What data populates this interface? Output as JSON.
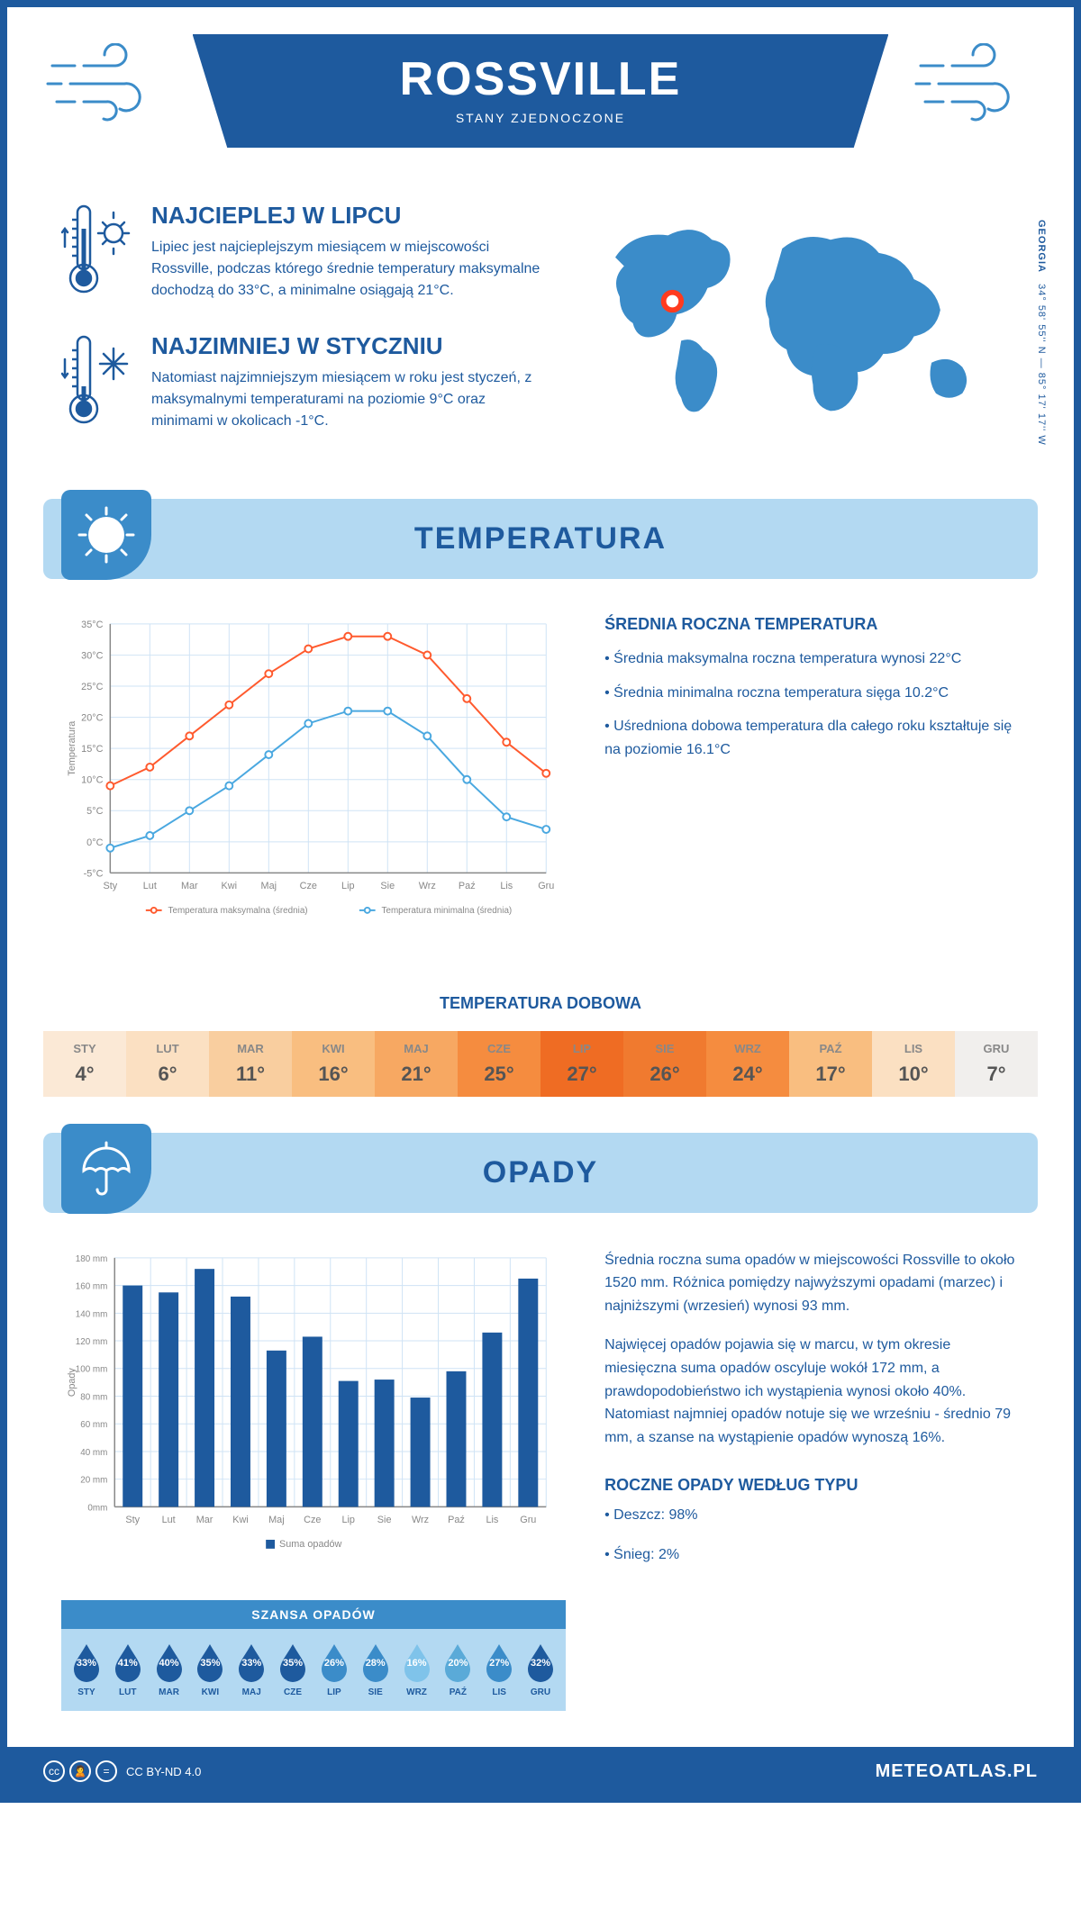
{
  "header": {
    "title": "ROSSVILLE",
    "subtitle": "STANY ZJEDNOCZONE"
  },
  "coords": {
    "text": "34° 58' 55'' N — 85° 17' 17'' W",
    "state": "GEORGIA"
  },
  "facts": {
    "hot": {
      "title": "NAJCIEPLEJ W LIPCU",
      "text": "Lipiec jest najcieplejszym miesiącem w miejscowości Rossville, podczas którego średnie temperatury maksymalne dochodzą do 33°C, a minimalne osiągają 21°C."
    },
    "cold": {
      "title": "NAJZIMNIEJ W STYCZNIU",
      "text": "Natomiast najzimniejszym miesiącem w roku jest styczeń, z maksymalnymi temperaturami na poziomie 9°C oraz minimami w okolicach -1°C."
    }
  },
  "sections": {
    "temp": "TEMPERATURA",
    "precip": "OPADY"
  },
  "months": [
    "Sty",
    "Lut",
    "Mar",
    "Kwi",
    "Maj",
    "Cze",
    "Lip",
    "Sie",
    "Wrz",
    "Paź",
    "Lis",
    "Gru"
  ],
  "months_upper": [
    "STY",
    "LUT",
    "MAR",
    "KWI",
    "MAJ",
    "CZE",
    "LIP",
    "SIE",
    "WRZ",
    "PAŹ",
    "LIS",
    "GRU"
  ],
  "temp_chart": {
    "type": "line",
    "ylabel": "Temperatura",
    "ylim": [
      -5,
      35
    ],
    "ytick_step": 5,
    "ytick_labels": [
      "-5°C",
      "0°C",
      "5°C",
      "10°C",
      "15°C",
      "20°C",
      "25°C",
      "30°C",
      "35°C"
    ],
    "series": {
      "max": {
        "label": "Temperatura maksymalna (średnia)",
        "color": "#ff5a2e",
        "values": [
          9,
          12,
          17,
          22,
          27,
          31,
          33,
          33,
          30,
          23,
          16,
          11
        ]
      },
      "min": {
        "label": "Temperatura minimalna (średnia)",
        "color": "#4aa8e0",
        "values": [
          -1,
          1,
          5,
          9,
          14,
          19,
          21,
          21,
          17,
          10,
          4,
          2
        ]
      }
    },
    "grid_color": "#cfe3f5",
    "background": "#ffffff",
    "line_width": 2,
    "marker": "circle",
    "marker_size": 4
  },
  "temp_side": {
    "title": "ŚREDNIA ROCZNA TEMPERATURA",
    "p1": "• Średnia maksymalna roczna temperatura wynosi 22°C",
    "p2": "• Średnia minimalna roczna temperatura sięga 10.2°C",
    "p3": "• Uśredniona dobowa temperatura dla całego roku kształtuje się na poziomie 16.1°C"
  },
  "daily": {
    "title": "TEMPERATURA DOBOWA",
    "values": [
      "4°",
      "6°",
      "11°",
      "16°",
      "21°",
      "25°",
      "27°",
      "26°",
      "24°",
      "17°",
      "10°",
      "7°"
    ],
    "colors": [
      "#fbe9d6",
      "#fbe0c2",
      "#f9ce9f",
      "#f9be80",
      "#f7a862",
      "#f58c3f",
      "#ef6c23",
      "#f07a2f",
      "#f58c3f",
      "#f9be80",
      "#fbe0c2",
      "#f1efed"
    ]
  },
  "precip_chart": {
    "type": "bar",
    "ylabel": "Opady",
    "ylim": [
      0,
      180
    ],
    "ytick_step": 20,
    "ytick_labels": [
      "0mm",
      "20 mm",
      "40 mm",
      "60 mm",
      "80 mm",
      "100 mm",
      "120 mm",
      "140 mm",
      "160 mm",
      "180 mm"
    ],
    "values": [
      160,
      155,
      172,
      152,
      113,
      123,
      91,
      92,
      79,
      98,
      126,
      165
    ],
    "bar_color": "#1e5a9e",
    "grid_color": "#cfe3f5",
    "legend": "Suma opadów",
    "bar_width": 0.55
  },
  "precip_side": {
    "p1": "Średnia roczna suma opadów w miejscowości Rossville to około 1520 mm. Różnica pomiędzy najwyższymi opadami (marzec) i najniższymi (wrzesień) wynosi 93 mm.",
    "p2": "Najwięcej opadów pojawia się w marcu, w tym okresie miesięczna suma opadów oscyluje wokół 172 mm, a prawdopodobieństwo ich wystąpienia wynosi około 40%. Natomiast najmniej opadów notuje się we wrześniu - średnio 79 mm, a szanse na wystąpienie opadów wynoszą 16%.",
    "type_title": "ROCZNE OPADY WEDŁUG TYPU",
    "type_rain": "• Deszcz: 98%",
    "type_snow": "• Śnieg: 2%"
  },
  "chance": {
    "title": "SZANSA OPADÓW",
    "values": [
      "33%",
      "41%",
      "40%",
      "35%",
      "33%",
      "35%",
      "26%",
      "28%",
      "16%",
      "20%",
      "27%",
      "32%"
    ],
    "colors": [
      "#1e5a9e",
      "#1e5a9e",
      "#1e5a9e",
      "#1e5a9e",
      "#1e5a9e",
      "#1e5a9e",
      "#3b8cc9",
      "#3b8cc9",
      "#7fc3ea",
      "#5aaad8",
      "#3b8cc9",
      "#1e5a9e"
    ]
  },
  "footer": {
    "license": "CC BY-ND 4.0",
    "site": "METEOATLAS.PL"
  },
  "colors": {
    "primary": "#1e5a9e",
    "light": "#b3d9f2",
    "accent": "#3b8cc9"
  }
}
